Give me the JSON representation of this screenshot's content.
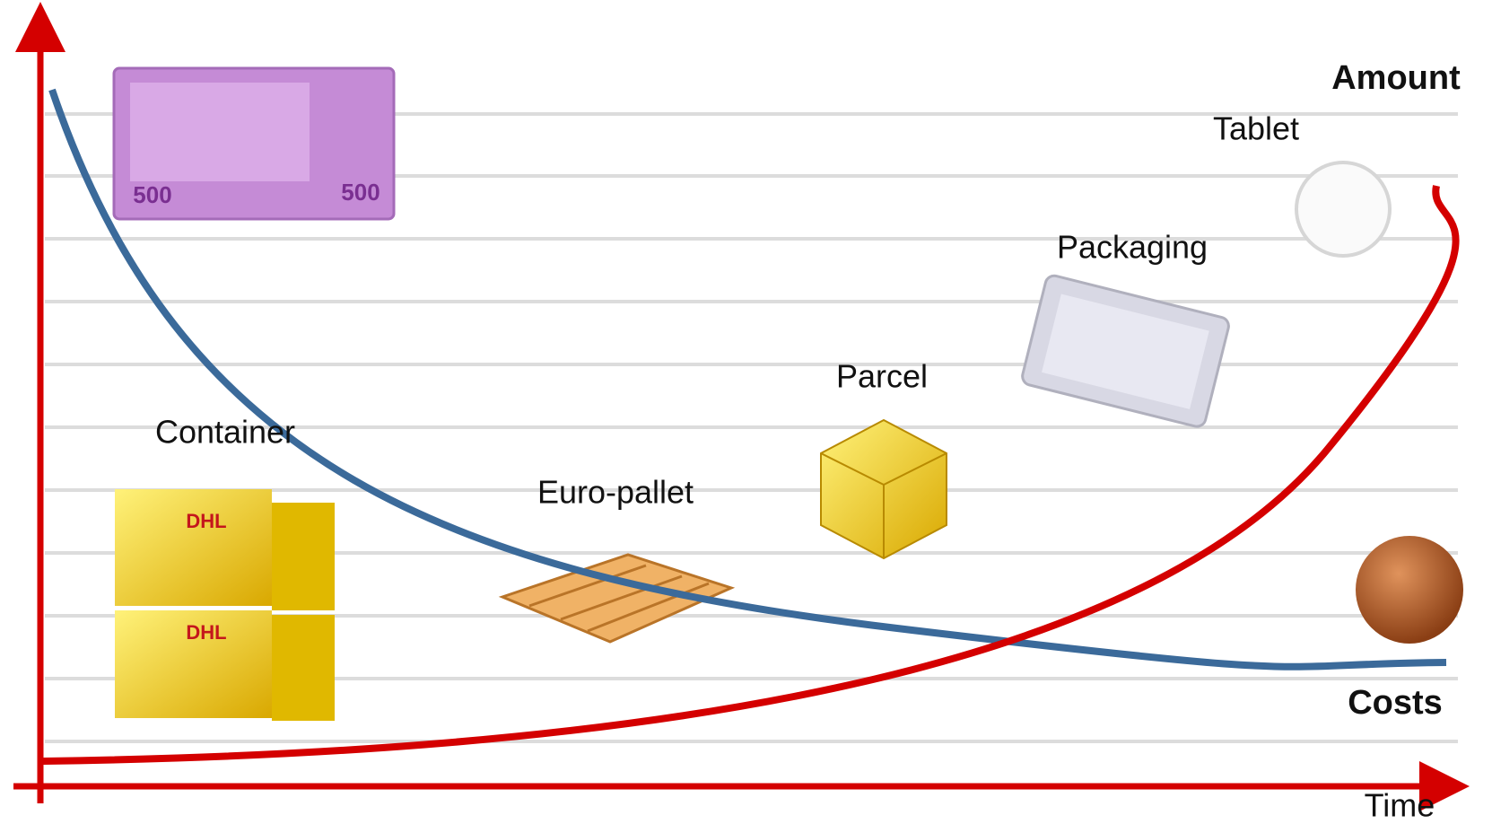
{
  "axes": {
    "amount": "Amount",
    "costs": "Costs",
    "time": "Time"
  },
  "items": {
    "tablet": "Tablet",
    "packaging": "Packaging",
    "parcel": "Parcel",
    "euro_pallet": "Euro-pallet",
    "container": "Container"
  }
}
